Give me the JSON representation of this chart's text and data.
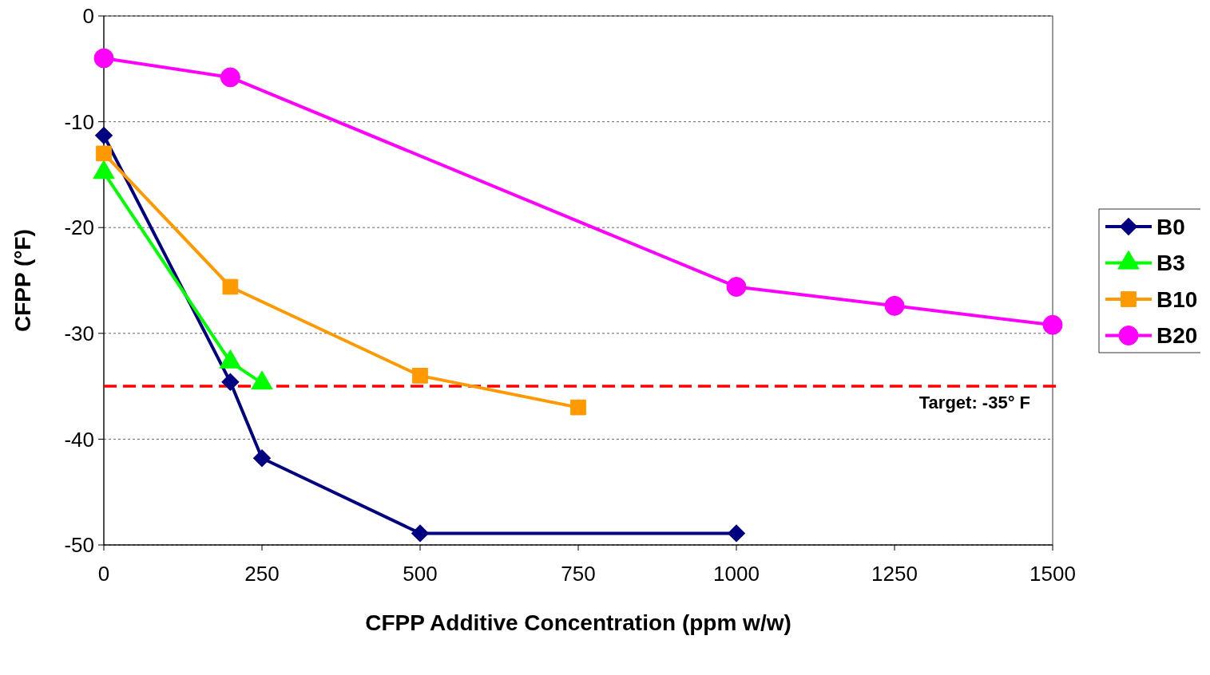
{
  "chart_data": {
    "type": "line",
    "xlabel": "CFPP Additive Concentration (ppm w/w)",
    "ylabel": "CFPP (°F)",
    "xlim": [
      0,
      1500
    ],
    "xticks": [
      0,
      250,
      500,
      750,
      1000,
      1250,
      1500
    ],
    "ylim": [
      -50,
      0
    ],
    "yticks": [
      -50,
      -40,
      -30,
      -20,
      -10,
      0
    ],
    "grid": "y",
    "legend": "right",
    "line_style": "solid",
    "series": [
      {
        "name": "B0",
        "color": "#000080",
        "marker": "diamond",
        "x": [
          0,
          200,
          250,
          500,
          1000
        ],
        "values": [
          -11.3,
          -34.6,
          -41.8,
          -48.9,
          -48.9
        ]
      },
      {
        "name": "B3",
        "color": "#00ff00",
        "marker": "triangle",
        "x": [
          0,
          200,
          250
        ],
        "values": [
          -14.8,
          -32.7,
          -34.7
        ]
      },
      {
        "name": "B10",
        "color": "#ff9900",
        "marker": "square",
        "x": [
          0,
          200,
          500,
          750
        ],
        "values": [
          -13,
          -25.6,
          -34,
          -37
        ]
      },
      {
        "name": "B20",
        "color": "#ff00ff",
        "marker": "circle",
        "x": [
          0,
          200,
          1000,
          1250,
          1500
        ],
        "values": [
          -4,
          -5.8,
          -25.6,
          -27.4,
          -29.2
        ]
      }
    ],
    "ref_lines": [
      {
        "axis": "y",
        "value": -35,
        "label": "Target:  -35° F",
        "color": "#ff0000",
        "line_style": "dashed"
      }
    ]
  }
}
